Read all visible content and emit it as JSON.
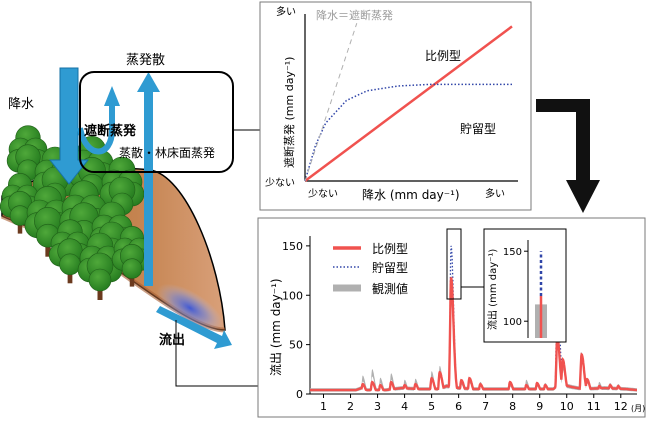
{
  "forest_diagram": {
    "label_rain": "降水",
    "label_evapotranspiration": "蒸発散",
    "label_interception": "遮断蒸発",
    "label_transpiration": "蒸散・林床面蒸発",
    "label_runoff": "流出"
  },
  "top_chart": {
    "chart_data": {
      "type": "line",
      "title": "",
      "xlabel": "降水 (mm day⁻¹)",
      "ylabel": "遮断蒸発 (mm day⁻¹)",
      "x_ticks": [
        "少ない",
        "多い"
      ],
      "y_ticks": [
        "少ない",
        "多い"
      ],
      "reference_line_label": "降水＝遮断蒸発",
      "series": [
        {
          "name": "比例型",
          "color": "#f0524f",
          "style": "solid",
          "x": [
            0,
            1
          ],
          "y": [
            0,
            0.96
          ]
        },
        {
          "name": "貯留型",
          "color": "#3045a8",
          "style": "dotted",
          "x": [
            0,
            0.05,
            0.1,
            0.2,
            0.3,
            0.45,
            0.6,
            0.8,
            1.0
          ],
          "y": [
            0,
            0.22,
            0.36,
            0.5,
            0.56,
            0.59,
            0.6,
            0.6,
            0.6
          ]
        },
        {
          "name": "降水＝遮断蒸発",
          "color": "#b0b0b0",
          "style": "dashed",
          "x": [
            0,
            0.25
          ],
          "y": [
            0,
            0.98
          ]
        }
      ],
      "xlim": [
        0,
        1
      ],
      "ylim": [
        0,
        1
      ]
    }
  },
  "bottom_chart": {
    "chart_data": {
      "type": "line",
      "title": "",
      "ylabel": "流出 (mm day⁻¹)",
      "x_unit": "(月)",
      "x_ticks": [
        "1",
        "2",
        "3",
        "4",
        "5",
        "6",
        "7",
        "8",
        "9",
        "10",
        "11",
        "12"
      ],
      "y_ticks": [
        0,
        50,
        100,
        150
      ],
      "ylim": [
        0,
        160
      ],
      "xlim": [
        0.5,
        12.6
      ],
      "series": [
        {
          "name": "比例型",
          "color": "#f0524f",
          "style": "solid"
        },
        {
          "name": "貯留型",
          "color": "#3045a8",
          "style": "dotted"
        },
        {
          "name": "観測値",
          "color": "#b0b0b0",
          "style": "band"
        }
      ],
      "base_flow": [
        [
          0.5,
          4
        ],
        [
          2.2,
          4
        ],
        [
          2.4,
          6
        ],
        [
          2.6,
          4
        ],
        [
          3.3,
          4
        ],
        [
          3.9,
          6
        ],
        [
          4.5,
          5
        ],
        [
          5.3,
          5
        ],
        [
          5.55,
          8
        ],
        [
          6.0,
          6
        ],
        [
          6.5,
          5
        ],
        [
          7.3,
          5
        ],
        [
          8.2,
          5
        ],
        [
          8.9,
          5
        ],
        [
          9.5,
          5
        ],
        [
          9.75,
          10
        ],
        [
          10.2,
          7
        ],
        [
          10.6,
          5
        ],
        [
          11.4,
          6
        ],
        [
          12.2,
          5
        ],
        [
          12.6,
          4
        ]
      ],
      "peaks": [
        {
          "x": 2.45,
          "model": 10,
          "obs": 16
        },
        {
          "x": 2.8,
          "model": 12,
          "obs": 22
        },
        {
          "x": 3.1,
          "model": 9,
          "obs": 14
        },
        {
          "x": 3.5,
          "model": 12,
          "obs": 18
        },
        {
          "x": 4.0,
          "model": 9,
          "obs": 12
        },
        {
          "x": 4.4,
          "model": 10,
          "obs": 13
        },
        {
          "x": 5.0,
          "model": 16,
          "obs": 20
        },
        {
          "x": 5.3,
          "model": 22,
          "obs": 25
        },
        {
          "x": 5.72,
          "model": 118,
          "obs": 110,
          "storage": 150
        },
        {
          "x": 6.1,
          "model": 14,
          "obs": 12
        },
        {
          "x": 6.4,
          "model": 16,
          "obs": 14
        },
        {
          "x": 6.8,
          "model": 10,
          "obs": 10
        },
        {
          "x": 7.9,
          "model": 12,
          "obs": 10
        },
        {
          "x": 8.5,
          "model": 9,
          "obs": 12
        },
        {
          "x": 8.9,
          "model": 11,
          "obs": 10
        },
        {
          "x": 9.2,
          "model": 9,
          "obs": 9
        },
        {
          "x": 9.65,
          "model": 58,
          "obs": 55,
          "storage": 108
        },
        {
          "x": 9.85,
          "model": 35,
          "obs": 30
        },
        {
          "x": 10.55,
          "model": 40,
          "obs": 38
        },
        {
          "x": 10.75,
          "model": 15,
          "obs": 14
        },
        {
          "x": 11.2,
          "model": 8,
          "obs": 10
        },
        {
          "x": 11.6,
          "model": 9,
          "obs": 9
        },
        {
          "x": 11.9,
          "model": 8,
          "obs": 8
        }
      ],
      "inset": {
        "ylabel": "流出 (mm day⁻¹)",
        "y_ticks": [
          100,
          150
        ],
        "ylim": [
          88,
          158
        ],
        "obs_range": [
          100,
          112
        ],
        "proportional_peak": 118,
        "storage_peak": 150
      }
    }
  },
  "colors": {
    "proportional": "#f0524f",
    "storage": "#3045a8",
    "observed": "#b0b0b0",
    "arrow_blue": "#1c90c8",
    "frame": "#7a7a7a"
  }
}
